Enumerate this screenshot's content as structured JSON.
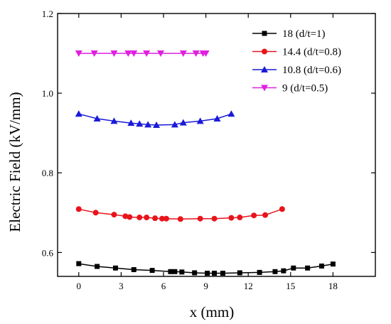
{
  "chart_data": {
    "type": "line",
    "title": "",
    "xlabel": "x (mm)",
    "ylabel": "Electric Field (kV/mm)",
    "xlim": [
      -1.5,
      21
    ],
    "ylim": [
      0.54,
      1.2
    ],
    "xticks": [
      0,
      3,
      6,
      9,
      12,
      15,
      18
    ],
    "xtick_labels": [
      "0",
      "3",
      "6",
      "9",
      "12",
      "15",
      "18"
    ],
    "yticks": [
      0.6,
      0.8,
      1.0,
      1.2
    ],
    "ytick_labels": [
      "0.6",
      "0.8",
      "1.0",
      "1.2"
    ],
    "grid": false,
    "legend_position": "top-right",
    "series": [
      {
        "name": "18 (d/t=1)",
        "color": "#000000",
        "marker": "square",
        "x": [
          0,
          1.3,
          2.6,
          3.9,
          5.2,
          6.5,
          6.8,
          7.3,
          8.2,
          9.1,
          9.6,
          10.2,
          11.4,
          12.8,
          13.9,
          14.5,
          15.2,
          16.2,
          17.2,
          18
        ],
        "y": [
          0.572,
          0.565,
          0.561,
          0.557,
          0.555,
          0.552,
          0.552,
          0.551,
          0.549,
          0.548,
          0.548,
          0.548,
          0.549,
          0.55,
          0.552,
          0.554,
          0.561,
          0.561,
          0.566,
          0.571
        ]
      },
      {
        "name": "14.4 (d/t=0.8)",
        "color": "#e8141c",
        "marker": "circle",
        "x": [
          0,
          1.2,
          2.5,
          3.3,
          3.6,
          4.3,
          4.8,
          5.4,
          5.9,
          6.2,
          7.2,
          8.6,
          9.6,
          10.8,
          11.4,
          12.4,
          13.2,
          14.4
        ],
        "y": [
          0.709,
          0.7,
          0.695,
          0.691,
          0.689,
          0.688,
          0.688,
          0.686,
          0.685,
          0.685,
          0.684,
          0.685,
          0.685,
          0.687,
          0.688,
          0.693,
          0.694,
          0.709
        ]
      },
      {
        "name": "10.8 (d/t=0.6)",
        "color": "#1a1ad8",
        "marker": "triangle-up",
        "x": [
          0,
          1.3,
          2.5,
          3.7,
          4.3,
          4.9,
          5.5,
          6.8,
          7.4,
          8.6,
          9.8,
          10.8
        ],
        "y": [
          0.948,
          0.936,
          0.93,
          0.925,
          0.923,
          0.921,
          0.92,
          0.921,
          0.926,
          0.93,
          0.936,
          0.948
        ]
      },
      {
        "name": "9 (d/t=0.5)",
        "color": "#e020e0",
        "marker": "triangle-down",
        "x": [
          0,
          1.1,
          2.5,
          3.5,
          3.9,
          4.8,
          5.8,
          7.4,
          8.3,
          8.8,
          9.0
        ],
        "y": [
          1.1,
          1.1,
          1.1,
          1.1,
          1.1,
          1.1,
          1.1,
          1.1,
          1.1,
          1.1,
          1.1
        ]
      }
    ]
  }
}
